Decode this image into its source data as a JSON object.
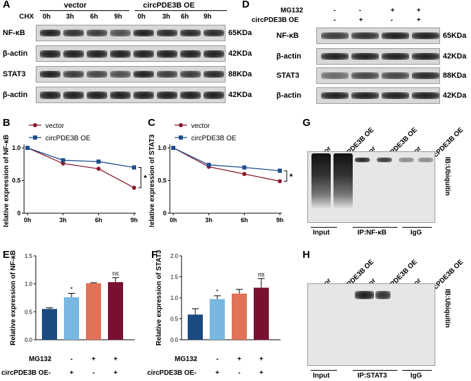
{
  "panelA": {
    "label": "A",
    "treatment_label": "CHX",
    "groups": [
      "vector",
      "circPDE3B OE"
    ],
    "times": [
      "0h",
      "3h",
      "6h",
      "9h",
      "0h",
      "3h",
      "6h",
      "9h"
    ],
    "rows": [
      {
        "name": "NF-κB",
        "size": "65KDa"
      },
      {
        "name": "β-actin",
        "size": "42KDa"
      },
      {
        "name": "STAT3",
        "size": "88KDa"
      },
      {
        "name": "β-actin",
        "size": "42KDa"
      }
    ]
  },
  "panelD": {
    "label": "D",
    "conditions": [
      {
        "name": "MG132",
        "signs": [
          "-",
          "-",
          "+",
          "+"
        ]
      },
      {
        "name": "circPDE3B OE",
        "signs": [
          "-",
          "+",
          "-",
          "+"
        ]
      }
    ],
    "rows": [
      {
        "name": "NF-κB",
        "size": "65KDa"
      },
      {
        "name": "β-actin",
        "size": "42KDa"
      },
      {
        "name": "STAT3",
        "size": "88KDa"
      },
      {
        "name": "β-actin",
        "size": "42KDa"
      }
    ]
  },
  "panelB": {
    "label": "B",
    "chart_data": {
      "type": "line",
      "categories": [
        "0h",
        "3h",
        "6h",
        "9h"
      ],
      "ylabel": "Relative expression of NF-κB",
      "ylim": [
        0,
        1.0
      ],
      "yticks": [
        "0",
        "0.5",
        "1.0"
      ],
      "series": [
        {
          "name": "vector",
          "color": "#8b1a2b",
          "values": [
            1.0,
            0.76,
            0.68,
            0.39
          ]
        },
        {
          "name": "circPDE3B OE",
          "color": "#1f4e8c",
          "values": [
            1.0,
            0.81,
            0.79,
            0.7
          ]
        }
      ],
      "significance": "*"
    }
  },
  "panelC": {
    "label": "C",
    "chart_data": {
      "type": "line",
      "categories": [
        "0h",
        "3h",
        "6h",
        "9h"
      ],
      "ylabel": "Relative expression of STAT3",
      "ylim": [
        0,
        1.0
      ],
      "yticks": [
        "0",
        "0.5",
        "1.0"
      ],
      "series": [
        {
          "name": "vector",
          "color": "#8b1a2b",
          "values": [
            1.0,
            0.71,
            0.6,
            0.49
          ]
        },
        {
          "name": "circPDE3B OE",
          "color": "#1f4e8c",
          "values": [
            1.0,
            0.74,
            0.7,
            0.65
          ]
        }
      ],
      "significance": "*"
    }
  },
  "panelE": {
    "label": "E",
    "chart_data": {
      "type": "bar",
      "ylabel": "Relative expression of NF-κB",
      "ylim": [
        0,
        1.5
      ],
      "yticks": [
        "0.0",
        "0.5",
        "1.0",
        "1.5"
      ],
      "values": [
        0.55,
        0.76,
        1.01,
        1.03
      ],
      "errors": [
        0.02,
        0.07,
        0.01,
        0.08
      ],
      "colors": [
        "#1a4a80",
        "#78b7e0",
        "#e27257",
        "#7a1030"
      ],
      "annotations": [
        "",
        "*",
        "",
        "ns"
      ],
      "row_labels": [
        {
          "name": "MG132",
          "signs": [
            "-",
            "-",
            "+",
            "+"
          ]
        },
        {
          "name": "circPDE3B OE",
          "signs": [
            "-",
            "+",
            "-",
            "+"
          ]
        }
      ]
    }
  },
  "panelF": {
    "label": "F",
    "chart_data": {
      "type": "bar",
      "ylabel": "Relative expression of STAT3",
      "ylim": [
        0,
        2.0
      ],
      "yticks": [
        "0.0",
        "0.5",
        "1.0",
        "1.5",
        "2.0"
      ],
      "values": [
        0.6,
        0.97,
        1.1,
        1.24
      ],
      "errors": [
        0.14,
        0.08,
        0.1,
        0.22
      ],
      "colors": [
        "#1a4a80",
        "#78b7e0",
        "#e27257",
        "#7a1030"
      ],
      "annotations": [
        "",
        "*",
        "",
        "ns"
      ],
      "row_labels": [
        {
          "name": "MG132",
          "signs": [
            "-",
            "-",
            "+",
            "+"
          ]
        },
        {
          "name": "circPDE3B OE",
          "signs": [
            "-",
            "+",
            "-",
            "+"
          ]
        }
      ]
    }
  },
  "panelG": {
    "label": "G",
    "lanes": [
      "vector",
      "circPDE3B OE",
      "vector",
      "circPDE3B OE",
      "vector",
      "circPDE3B OE"
    ],
    "groups": [
      "Input",
      "IP:NF-κB",
      "IgG"
    ],
    "side_label": "IB:Ubiquitin"
  },
  "panelH": {
    "label": "H",
    "lanes": [
      "vector",
      "circPDE3B OE",
      "vector",
      "circPDE3B OE",
      "vector",
      "circPDE3B OE"
    ],
    "groups": [
      "Input",
      "IP:STAT3",
      "IgG"
    ],
    "side_label": "IB:Ubiquitin"
  }
}
